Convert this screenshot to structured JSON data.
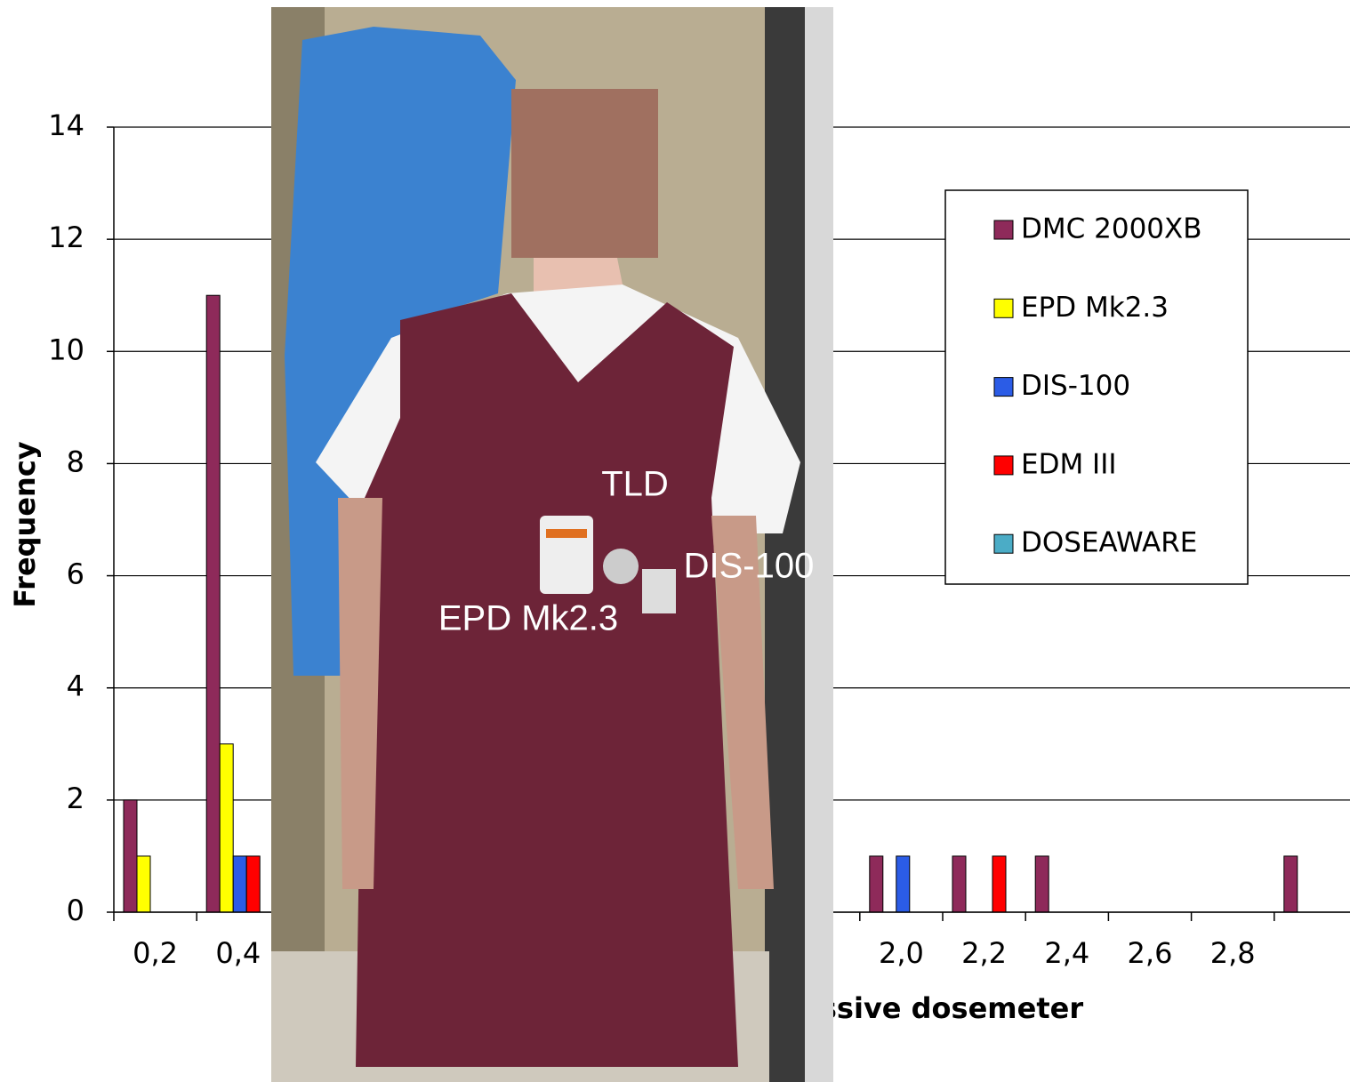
{
  "chart_data": {
    "type": "bar",
    "y_label": "Frequency",
    "x_label": "ssive dosemeter",
    "categories": [
      "0,2",
      "0,4",
      null,
      null,
      null,
      null,
      null,
      null,
      null,
      "2,0",
      "2,2",
      "2,4",
      "2,6",
      "2,8",
      null
    ],
    "series": [
      {
        "name": "DMC 2000XB",
        "color": "#8e2a5a",
        "values": [
          2,
          11,
          null,
          null,
          null,
          null,
          null,
          null,
          null,
          1,
          1,
          1,
          0,
          0,
          1
        ]
      },
      {
        "name": "EPD Mk2.3",
        "color": "#ffff00",
        "values": [
          1,
          3,
          null,
          null,
          null,
          null,
          null,
          null,
          null,
          0,
          0,
          0,
          0,
          0,
          0
        ]
      },
      {
        "name": "DIS-100",
        "color": "#2b5ce6",
        "values": [
          0,
          1,
          null,
          null,
          null,
          null,
          null,
          null,
          null,
          1,
          0,
          0,
          0,
          0,
          0
        ]
      },
      {
        "name": "EDM III",
        "color": "#ff0000",
        "values": [
          0,
          1,
          null,
          null,
          null,
          null,
          null,
          null,
          null,
          0,
          1,
          0,
          0,
          0,
          0
        ]
      },
      {
        "name": "DOSEAWARE",
        "color": "#4bacc6",
        "values": [
          0,
          0,
          null,
          null,
          null,
          null,
          null,
          null,
          null,
          0,
          0,
          0,
          0,
          0,
          0
        ]
      }
    ],
    "ylim": [
      0,
      14
    ],
    "yticks": [
      0,
      2,
      4,
      6,
      8,
      10,
      12,
      14
    ],
    "grid": true,
    "annotations": [
      "TLD",
      "DIS-100",
      "EPD Mk2.3"
    ]
  }
}
